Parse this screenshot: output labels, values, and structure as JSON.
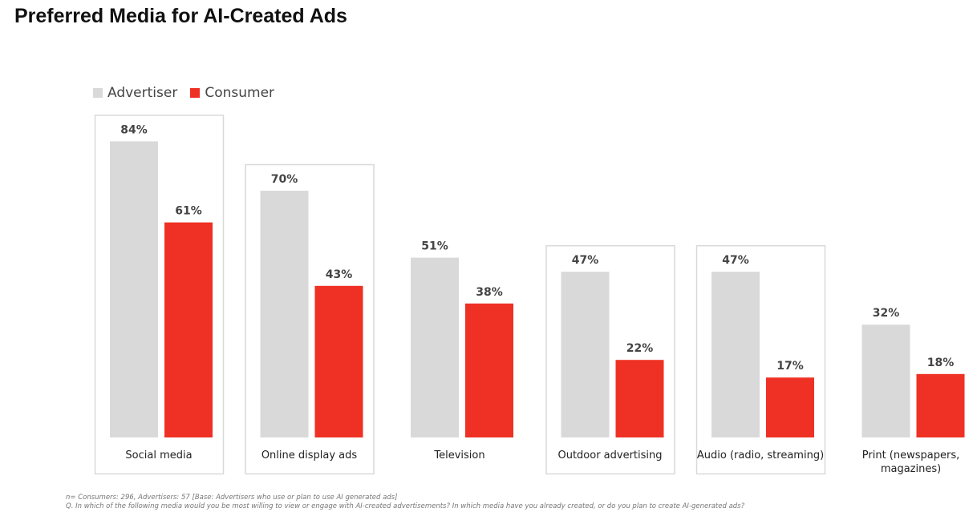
{
  "title": "Preferred Media for AI-Created Ads",
  "colors": {
    "advertiser": "#d9d9d9",
    "consumer": "#ee3124",
    "box_border": "#d9d9d9",
    "label_text": "#444444",
    "category_text": "#222222"
  },
  "chart_data": {
    "type": "bar",
    "categories": [
      "Social media",
      "Online display ads",
      "Television",
      "Outdoor advertising",
      "Audio (radio, streaming)",
      "Print (newspapers, magazines)"
    ],
    "series": [
      {
        "name": "Advertiser",
        "values": [
          84,
          70,
          51,
          47,
          47,
          32
        ],
        "labels": [
          "84%",
          "70%",
          "51%",
          "47%",
          "47%",
          "32%"
        ]
      },
      {
        "name": "Consumer",
        "values": [
          61,
          43,
          38,
          22,
          17,
          18
        ],
        "labels": [
          "61%",
          "43%",
          "38%",
          "22%",
          "17%",
          "18%"
        ]
      }
    ],
    "highlighted_categories": [
      "Social media",
      "Online display ads",
      "Outdoor advertising",
      "Audio (radio, streaming)"
    ],
    "ylim": [
      0,
      100
    ],
    "legend_position": "top-left",
    "grid": false
  },
  "footnotes": [
    "n= Consumers: 296, Advertisers: 57 [Base: Advertisers who use or plan to use AI generated ads]",
    "Q. In which of the following media would you be most willing to view or engage with AI-created advertisements? In which media have you already created, or do you plan to create AI-generated ads?"
  ]
}
